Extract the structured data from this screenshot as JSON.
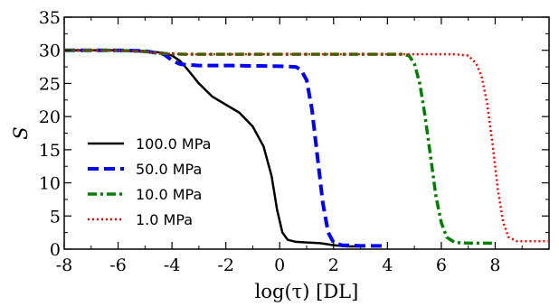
{
  "chart_data": {
    "type": "line",
    "title": "",
    "xlabel": "log(τ) [DL]",
    "ylabel": "S",
    "xlim": [
      -8,
      10
    ],
    "ylim": [
      0,
      35
    ],
    "x_ticks": [
      -8,
      -6,
      -4,
      -2,
      0,
      2,
      4,
      6,
      8
    ],
    "y_ticks": [
      0,
      5,
      10,
      15,
      20,
      25,
      30,
      35
    ],
    "grid": false,
    "legend_position": "center-left",
    "series": [
      {
        "name": "100.0 MPa",
        "color": "#000000",
        "style": "solid",
        "points": [
          [
            -8,
            30
          ],
          [
            -6,
            30
          ],
          [
            -5,
            29.9
          ],
          [
            -4.3,
            29.6
          ],
          [
            -4,
            29.2
          ],
          [
            -3.7,
            28.4
          ],
          [
            -3.4,
            27
          ],
          [
            -3,
            25
          ],
          [
            -2.5,
            23
          ],
          [
            -2,
            21.8
          ],
          [
            -1.5,
            20.6
          ],
          [
            -1,
            18.5
          ],
          [
            -0.6,
            15.5
          ],
          [
            -0.3,
            11
          ],
          [
            -0.1,
            6
          ],
          [
            0.1,
            2.5
          ],
          [
            0.3,
            1.4
          ],
          [
            0.6,
            1.1
          ],
          [
            1,
            1
          ],
          [
            1.5,
            0.9
          ],
          [
            2,
            0.6
          ],
          [
            2.5,
            0.4
          ],
          [
            3,
            0.4
          ]
        ]
      },
      {
        "name": "50.0 MPa",
        "color": "#0000ff",
        "style": "dashed",
        "points": [
          [
            -8,
            30
          ],
          [
            -6,
            30
          ],
          [
            -5,
            29.9
          ],
          [
            -4.3,
            29.4
          ],
          [
            -4,
            28.5
          ],
          [
            -3.7,
            27.9
          ],
          [
            -3,
            27.7
          ],
          [
            -2,
            27.7
          ],
          [
            0,
            27.6
          ],
          [
            0.6,
            27.5
          ],
          [
            0.8,
            27
          ],
          [
            1,
            25.5
          ],
          [
            1.2,
            21
          ],
          [
            1.4,
            14
          ],
          [
            1.6,
            7
          ],
          [
            1.8,
            2.5
          ],
          [
            2,
            1
          ],
          [
            2.3,
            0.6
          ],
          [
            3,
            0.5
          ],
          [
            4,
            0.5
          ]
        ]
      },
      {
        "name": "10.0 MPa",
        "color": "#008000",
        "style": "dashdot",
        "points": [
          [
            -8,
            30
          ],
          [
            -6,
            30
          ],
          [
            -5,
            29.8
          ],
          [
            -4.3,
            29.5
          ],
          [
            -3.5,
            29.4
          ],
          [
            0,
            29.4
          ],
          [
            4.5,
            29.4
          ],
          [
            4.8,
            29.2
          ],
          [
            5,
            28
          ],
          [
            5.2,
            25
          ],
          [
            5.4,
            20
          ],
          [
            5.6,
            14
          ],
          [
            5.8,
            8
          ],
          [
            6,
            4
          ],
          [
            6.2,
            1.8
          ],
          [
            6.5,
            1
          ],
          [
            7,
            0.9
          ],
          [
            8,
            0.9
          ]
        ]
      },
      {
        "name": "1.0 MPa",
        "color": "#ff0000",
        "style": "dotted",
        "points": [
          [
            -8,
            30
          ],
          [
            -6,
            30
          ],
          [
            -5,
            29.8
          ],
          [
            -4.3,
            29.5
          ],
          [
            -3.5,
            29.4
          ],
          [
            0,
            29.4
          ],
          [
            6.5,
            29.4
          ],
          [
            7,
            29.2
          ],
          [
            7.3,
            28
          ],
          [
            7.5,
            26
          ],
          [
            7.7,
            22
          ],
          [
            7.9,
            16
          ],
          [
            8.1,
            9
          ],
          [
            8.3,
            4
          ],
          [
            8.5,
            1.8
          ],
          [
            8.8,
            1.2
          ],
          [
            9.5,
            1.2
          ],
          [
            10,
            1.2
          ]
        ]
      }
    ]
  }
}
